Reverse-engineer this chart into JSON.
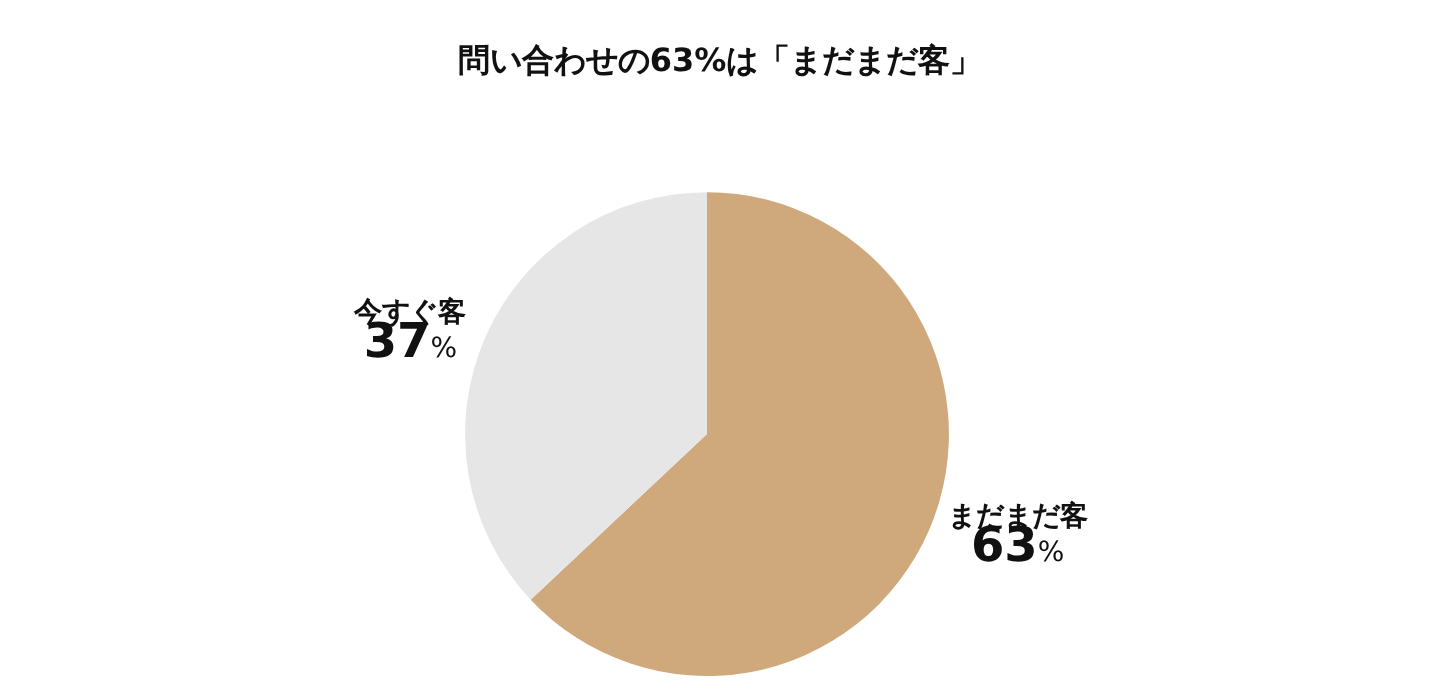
{
  "chart_data": {
    "type": "pie",
    "title": "問い合わせの63%は「まだまだ客」",
    "categories": [
      "まだまだ客",
      "今すぐ客"
    ],
    "values": [
      63,
      37
    ],
    "colors": [
      "#cfa97b",
      "#e6e6e6"
    ],
    "value_labels": [
      "63%",
      "37%"
    ],
    "legend": false
  }
}
